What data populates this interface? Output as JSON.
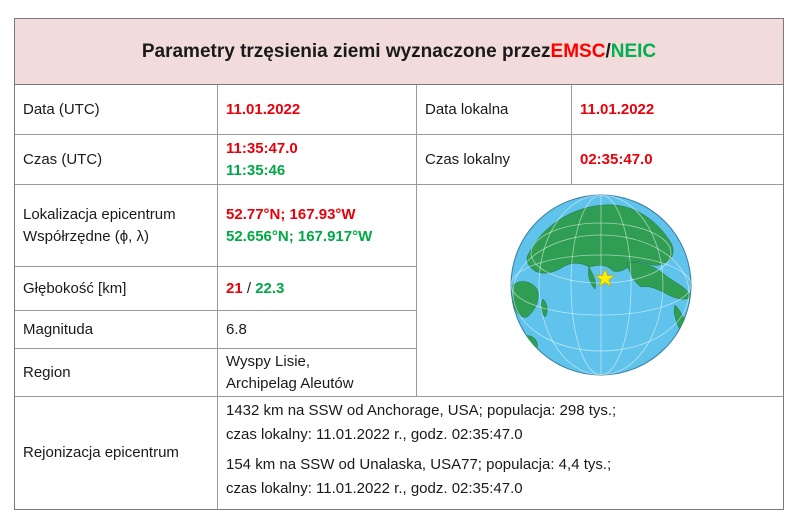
{
  "title": {
    "prefix": "Parametry trzęsienia ziemi wyznaczone przez ",
    "emsc": "EMSC",
    "slash": "/",
    "neic": "NEIC"
  },
  "rows": {
    "date_utc": {
      "label": "Data (UTC)",
      "value": "11.01.2022"
    },
    "date_local": {
      "label": "Data lokalna",
      "value": "11.01.2022"
    },
    "time_utc": {
      "label": "Czas (UTC)",
      "value_emsc": "11:35:47.0",
      "value_neic": "11:35:46"
    },
    "time_local": {
      "label": "Czas lokalny",
      "value": "02:35:47.0"
    },
    "location": {
      "label1": "Lokalizacja epicentrum",
      "label2": "Współrzędne (ϕ, λ)",
      "value_emsc": "52.77°N; 167.93°W",
      "value_neic": "52.656°N; 167.917°W"
    },
    "depth": {
      "label": "Głębokość [km]",
      "value_emsc": "21",
      "sep": " / ",
      "value_neic": "22.3"
    },
    "magnitude": {
      "label": "Magnituda",
      "value": "6.8"
    },
    "region": {
      "label": "Region",
      "line1": "Wyspy Lisie,",
      "line2": "Archipelag Aleutów"
    },
    "regionalization": {
      "label": "Rejonizacja epicentrum",
      "p1_line1": "1432 km na SSW od Anchorage, USA; populacja: 298 tys.;",
      "p1_line2": "czas lokalny: 11.01.2022 r., godz. 02:35:47.0",
      "p2_line1": "154 km na SSW od Unalaska, USA77; populacja: 4,4 tys.;",
      "p2_line2": "czas lokalny: 11.01.2022 r., godz. 02:35:47.0"
    }
  },
  "colors": {
    "emsc": "#e8000b",
    "neic": "#00a846",
    "title_bg": "#f2dcdb",
    "ocean": "#5fc3ec",
    "land": "#2f9e52",
    "marker": "#ffee00"
  },
  "icons": {
    "globe": "globe-map",
    "marker": "star-marker"
  }
}
